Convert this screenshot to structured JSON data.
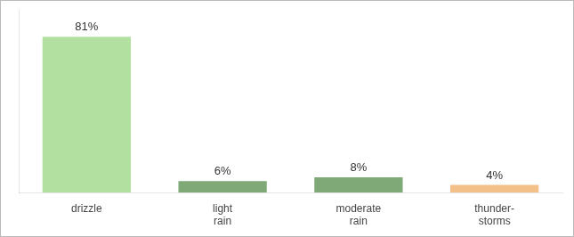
{
  "chart_data": {
    "type": "bar",
    "categories": [
      "drizzle",
      "light\nrain",
      "moderate\nrain",
      "thunder-\nstorms"
    ],
    "values": [
      81,
      6,
      8,
      4
    ],
    "value_labels": [
      "81%",
      "6%",
      "8%",
      "4%"
    ],
    "colors": [
      "#b2e0a0",
      "#7faa78",
      "#7faa78",
      "#f4c08a"
    ],
    "ylim": [
      0,
      95
    ],
    "data_labels": true,
    "grid": false,
    "tick_labels": "x"
  }
}
